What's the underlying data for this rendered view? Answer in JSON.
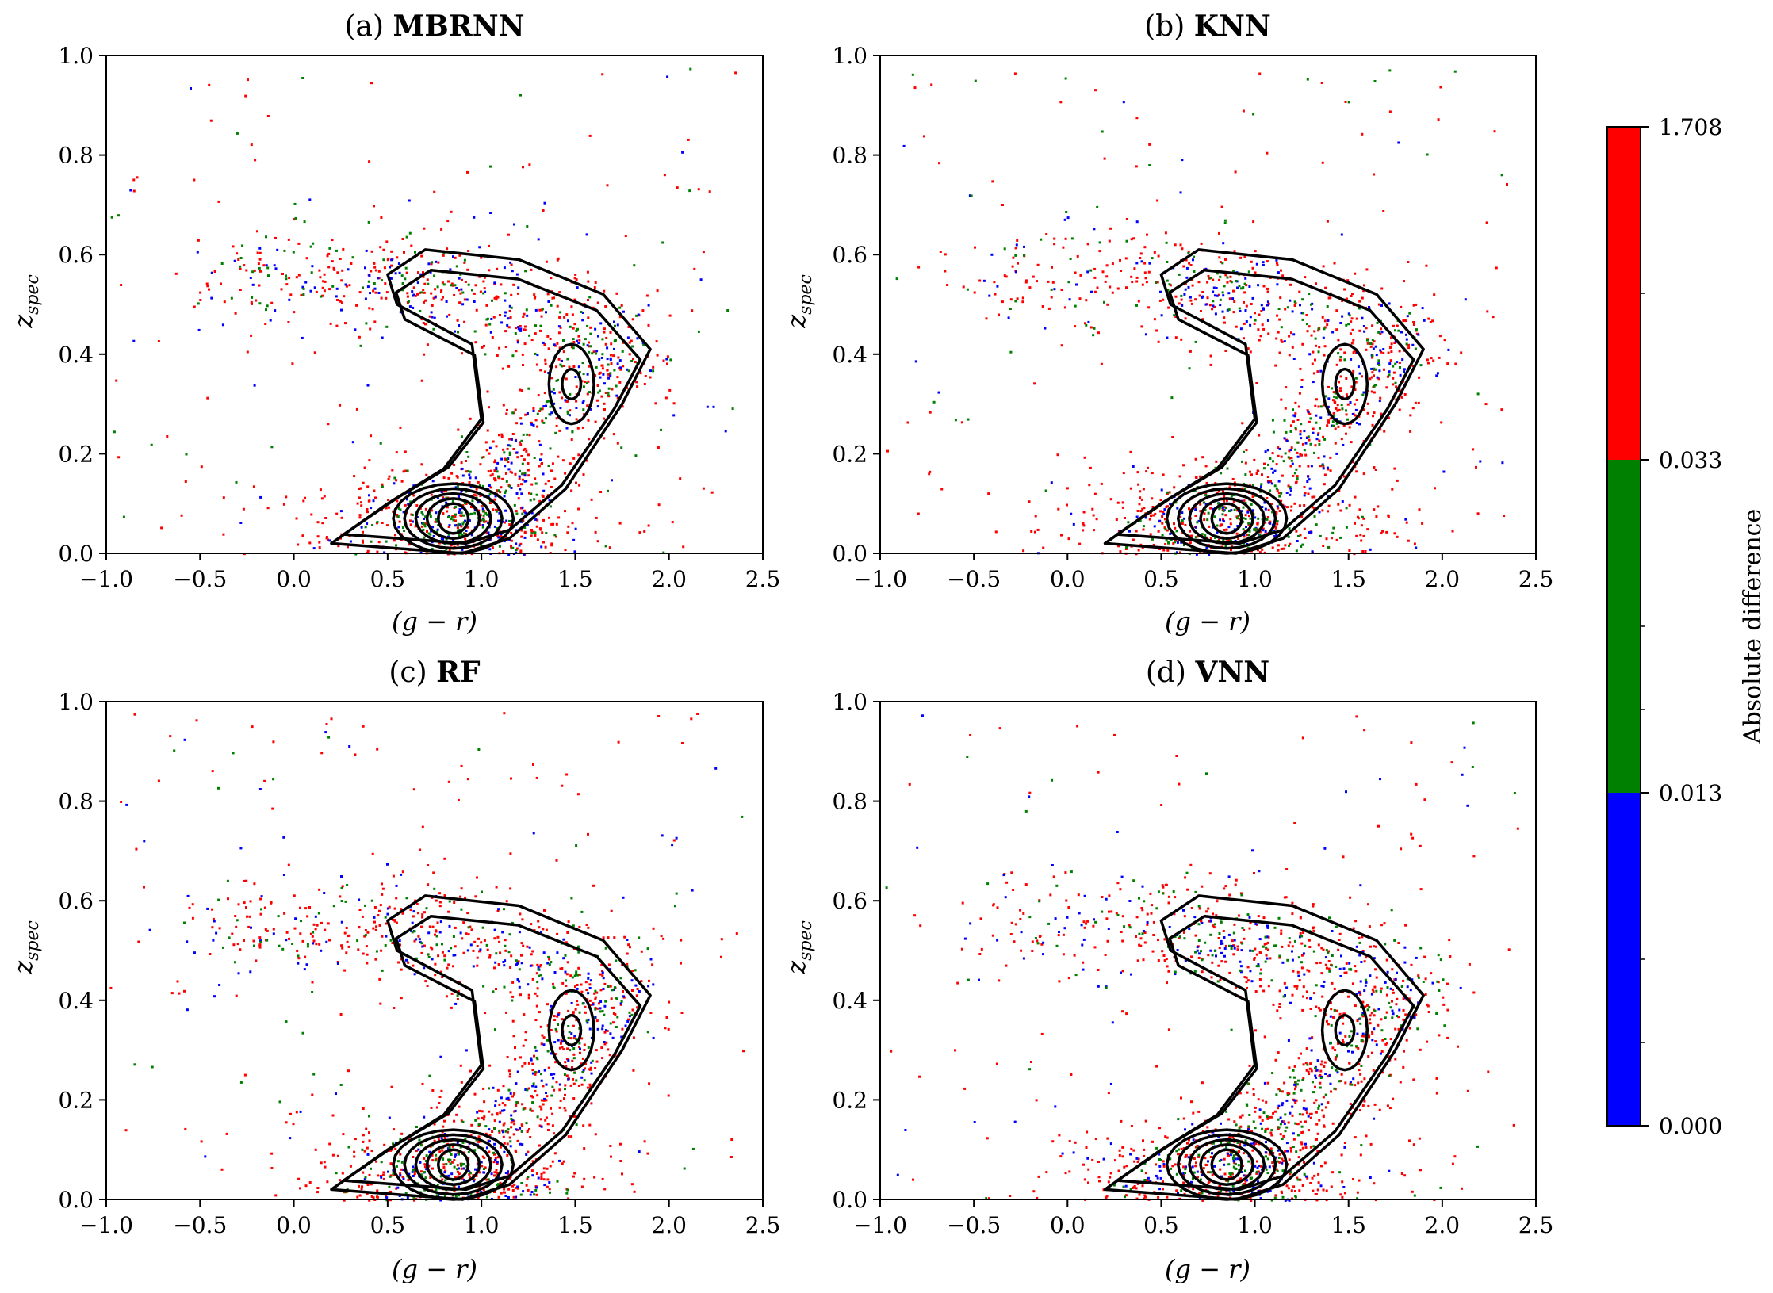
{
  "figure": {
    "colorbar": {
      "label": "Absolute difference",
      "ticks": [
        "1.708",
        "0.033",
        "0.013",
        "0.000"
      ],
      "colors": {
        "high": "#ff0000",
        "mid": "#008000",
        "low": "#0000ff"
      }
    },
    "contour_color": "#000000"
  },
  "chart_data": [
    {
      "type": "scatter",
      "panel_id": "a",
      "title_letter": "(a)",
      "title": "MBRNN",
      "xlabel": "(g − r)",
      "ylabel": "z",
      "ylabel_sub": "spec",
      "xlim": [
        -1.0,
        2.5
      ],
      "ylim": [
        0.0,
        1.0
      ],
      "xticks": [
        "−1.0",
        "−0.5",
        "0.0",
        "0.5",
        "1.0",
        "1.5",
        "2.0",
        "2.5"
      ],
      "yticks": [
        "0.0",
        "0.2",
        "0.4",
        "0.6",
        "0.8",
        "1.0"
      ],
      "series": [
        {
          "name": "0.033–1.708",
          "color": "#ff0000",
          "approx_points": 900
        },
        {
          "name": "0.013–0.033",
          "color": "#008000",
          "approx_points": 350
        },
        {
          "name": "0.000–0.013",
          "color": "#0000ff",
          "approx_points": 350
        }
      ],
      "density_peaks": [
        [
          0.85,
          0.07
        ],
        [
          1.47,
          0.34
        ],
        [
          1.05,
          0.5
        ],
        [
          0.2,
          0.56
        ]
      ]
    },
    {
      "type": "scatter",
      "panel_id": "b",
      "title_letter": "(b)",
      "title": "KNN",
      "xlabel": "(g − r)",
      "ylabel": "z",
      "ylabel_sub": "spec",
      "xlim": [
        -1.0,
        2.5
      ],
      "ylim": [
        0.0,
        1.0
      ],
      "xticks": [
        "−1.0",
        "−0.5",
        "0.0",
        "0.5",
        "1.0",
        "1.5",
        "2.0",
        "2.5"
      ],
      "yticks": [
        "0.0",
        "0.2",
        "0.4",
        "0.6",
        "0.8",
        "1.0"
      ],
      "series": [
        {
          "name": "0.033–1.708",
          "color": "#ff0000",
          "approx_points": 950
        },
        {
          "name": "0.013–0.033",
          "color": "#008000",
          "approx_points": 320
        },
        {
          "name": "0.000–0.013",
          "color": "#0000ff",
          "approx_points": 320
        }
      ],
      "density_peaks": [
        [
          0.85,
          0.07
        ],
        [
          1.47,
          0.34
        ],
        [
          1.05,
          0.5
        ],
        [
          0.2,
          0.56
        ]
      ]
    },
    {
      "type": "scatter",
      "panel_id": "c",
      "title_letter": "(c)",
      "title": "RF",
      "xlabel": "(g − r)",
      "ylabel": "z",
      "ylabel_sub": "spec",
      "xlim": [
        -1.0,
        2.5
      ],
      "ylim": [
        0.0,
        1.0
      ],
      "xticks": [
        "−1.0",
        "−0.5",
        "0.0",
        "0.5",
        "1.0",
        "1.5",
        "2.0",
        "2.5"
      ],
      "yticks": [
        "0.0",
        "0.2",
        "0.4",
        "0.6",
        "0.8",
        "1.0"
      ],
      "series": [
        {
          "name": "0.033–1.708",
          "color": "#ff0000",
          "approx_points": 950
        },
        {
          "name": "0.013–0.033",
          "color": "#008000",
          "approx_points": 330
        },
        {
          "name": "0.000–0.013",
          "color": "#0000ff",
          "approx_points": 330
        }
      ],
      "density_peaks": [
        [
          0.85,
          0.07
        ],
        [
          1.47,
          0.34
        ],
        [
          1.05,
          0.5
        ],
        [
          0.2,
          0.56
        ]
      ]
    },
    {
      "type": "scatter",
      "panel_id": "d",
      "title_letter": "(d)",
      "title": "VNN",
      "xlabel": "(g − r)",
      "ylabel": "z",
      "ylabel_sub": "spec",
      "xlim": [
        -1.0,
        2.5
      ],
      "ylim": [
        0.0,
        1.0
      ],
      "xticks": [
        "−1.0",
        "−0.5",
        "0.0",
        "0.5",
        "1.0",
        "1.5",
        "2.0",
        "2.5"
      ],
      "yticks": [
        "0.0",
        "0.2",
        "0.4",
        "0.6",
        "0.8",
        "1.0"
      ],
      "series": [
        {
          "name": "0.033–1.708",
          "color": "#ff0000",
          "approx_points": 950
        },
        {
          "name": "0.013–0.033",
          "color": "#008000",
          "approx_points": 330
        },
        {
          "name": "0.000–0.013",
          "color": "#0000ff",
          "approx_points": 330
        }
      ],
      "density_peaks": [
        [
          0.85,
          0.07
        ],
        [
          1.47,
          0.34
        ],
        [
          1.05,
          0.5
        ],
        [
          0.2,
          0.56
        ]
      ]
    }
  ]
}
